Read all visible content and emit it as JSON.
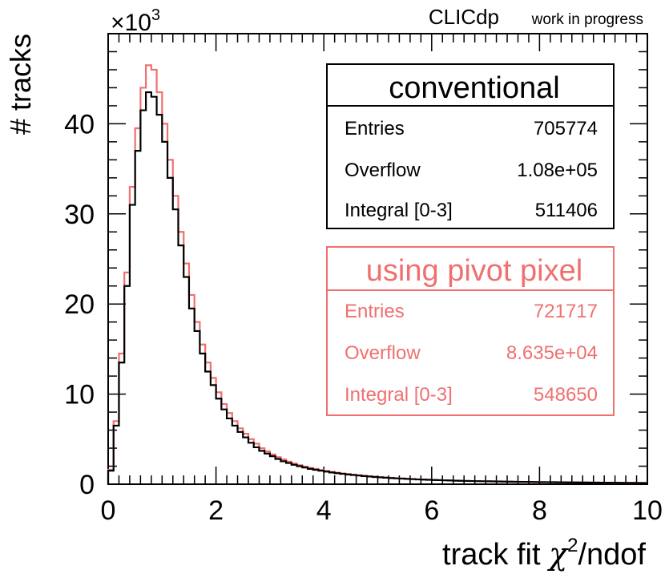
{
  "header": {
    "multiplier": "×10",
    "multiplier_exp": "3",
    "brand": "CLICdp",
    "brand_sub": "work in progress"
  },
  "chart_data": {
    "type": "histogram-step",
    "title": "",
    "xlabel_main": "track fit ",
    "xlabel_chi": "χ",
    "xlabel_sup": "2",
    "xlabel_tail": "/ndof",
    "ylabel": "# tracks",
    "xlim": [
      0,
      10
    ],
    "ylim": [
      0,
      50
    ],
    "y_unit_scale": 1000,
    "x_ticks": [
      "0",
      "2",
      "4",
      "6",
      "8",
      "10"
    ],
    "y_ticks": [
      "0",
      "10",
      "20",
      "30",
      "40"
    ],
    "bin_width": 0.1,
    "colors": {
      "conventional": "#000000",
      "pivot": "#f07070"
    },
    "series": [
      {
        "name": "conventional",
        "values": [
          1.5,
          6.5,
          13.5,
          22.0,
          31.0,
          37.0,
          41.5,
          43.5,
          43.0,
          41.0,
          38.0,
          34.0,
          30.5,
          26.5,
          23.0,
          19.5,
          17.0,
          14.5,
          12.5,
          11.0,
          9.5,
          8.3,
          7.3,
          6.5,
          5.8,
          5.2,
          4.6,
          4.1,
          3.7,
          3.4,
          3.1,
          2.8,
          2.55,
          2.35,
          2.15,
          2.0,
          1.85,
          1.7,
          1.6,
          1.5,
          1.4,
          1.3,
          1.22,
          1.15,
          1.08,
          1.02,
          0.96,
          0.9,
          0.85,
          0.8,
          0.76,
          0.72,
          0.68,
          0.65,
          0.62,
          0.59,
          0.56,
          0.53,
          0.51,
          0.49,
          0.47,
          0.45,
          0.43,
          0.41,
          0.39,
          0.38,
          0.36,
          0.35,
          0.34,
          0.33,
          0.32,
          0.31,
          0.3,
          0.29,
          0.28,
          0.27,
          0.26,
          0.26,
          0.25,
          0.24,
          0.23,
          0.23,
          0.22,
          0.21,
          0.21,
          0.2,
          0.2,
          0.19,
          0.19,
          0.18,
          0.18,
          0.17,
          0.17,
          0.16,
          0.16,
          0.15,
          0.15,
          0.15,
          0.14,
          0.14
        ]
      },
      {
        "name": "using pivot pixel",
        "values": [
          1.6,
          7.0,
          14.5,
          23.5,
          33.0,
          39.5,
          44.0,
          46.5,
          46.0,
          43.5,
          40.0,
          36.0,
          32.0,
          28.0,
          24.5,
          21.0,
          18.0,
          15.5,
          13.5,
          11.8,
          10.2,
          8.9,
          7.9,
          7.0,
          6.2,
          5.6,
          5.0,
          4.5,
          4.0,
          3.65,
          3.3,
          3.0,
          2.75,
          2.5,
          2.3,
          2.12,
          1.96,
          1.82,
          1.7,
          1.58,
          1.47,
          1.37,
          1.28,
          1.2,
          1.13,
          1.06,
          1.0,
          0.94,
          0.89,
          0.84,
          0.79,
          0.75,
          0.71,
          0.67,
          0.64,
          0.61,
          0.58,
          0.55,
          0.52,
          0.5,
          0.48,
          0.46,
          0.44,
          0.42,
          0.4,
          0.39,
          0.37,
          0.36,
          0.35,
          0.34,
          0.33,
          0.32,
          0.31,
          0.3,
          0.29,
          0.28,
          0.27,
          0.26,
          0.25,
          0.25,
          0.24,
          0.23,
          0.23,
          0.22,
          0.21,
          0.21,
          0.2,
          0.2,
          0.19,
          0.19,
          0.18,
          0.18,
          0.17,
          0.17,
          0.16,
          0.16,
          0.15,
          0.15,
          0.15,
          0.14
        ]
      }
    ]
  },
  "stats_conventional": {
    "title": "conventional",
    "rows": [
      {
        "label": "Entries",
        "value": "705774"
      },
      {
        "label": "Overflow",
        "value": "1.08e+05"
      },
      {
        "label": "Integral [0-3]",
        "value": "511406"
      }
    ]
  },
  "stats_pivot": {
    "title": "using pivot pixel",
    "rows": [
      {
        "label": "Entries",
        "value": "721717"
      },
      {
        "label": "Overflow",
        "value": "8.635e+04"
      },
      {
        "label": "Integral [0-3]",
        "value": "548650"
      }
    ]
  }
}
